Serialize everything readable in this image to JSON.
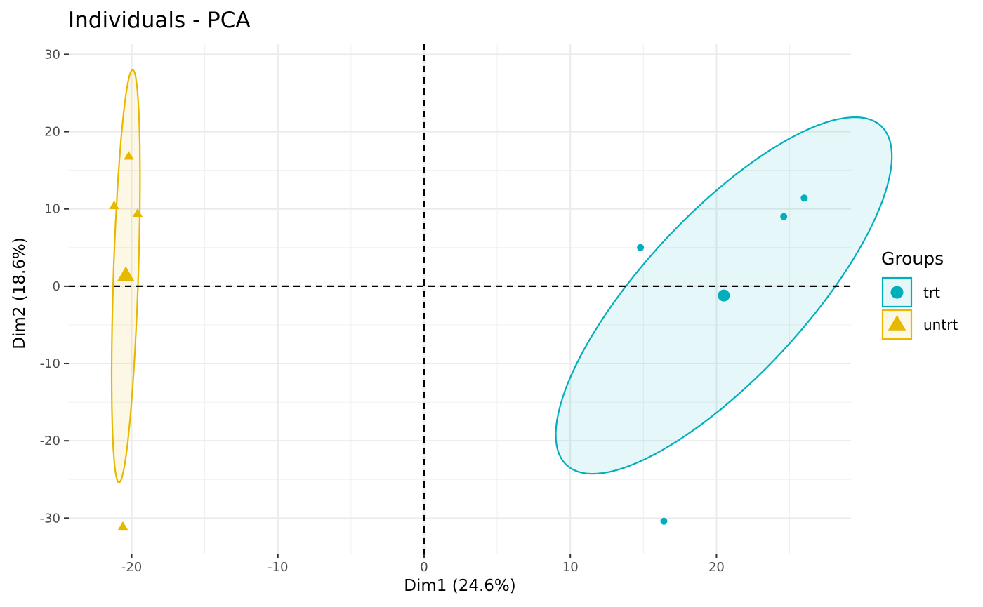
{
  "chart_data": {
    "type": "scatter",
    "title": "Individuals - PCA",
    "xlabel": "Dim1 (24.6%)",
    "ylabel": "Dim2 (18.6%)",
    "xlim": [
      -24.3,
      29.2
    ],
    "ylim": [
      -34.6,
      31.4
    ],
    "x_ticks": [
      -20,
      -10,
      0,
      10,
      20
    ],
    "y_ticks": [
      -30,
      -20,
      -10,
      0,
      10,
      20,
      30
    ],
    "x_tick_labels": [
      "-20",
      "-10",
      "0",
      "10",
      "20"
    ],
    "y_tick_labels": [
      "-30",
      "-20",
      "-10",
      "0",
      "10",
      "20",
      "30"
    ],
    "grid": true,
    "reference_lines": {
      "x": 0,
      "y": 0,
      "style": "dashed"
    },
    "legend": {
      "title": "Groups",
      "position": "right",
      "entries": [
        "trt",
        "untrt"
      ]
    },
    "series": [
      {
        "name": "trt",
        "color": "#00AFBB",
        "marker": "circle",
        "points": [
          {
            "x": 14.8,
            "y": 5.0
          },
          {
            "x": 24.6,
            "y": 9.0
          },
          {
            "x": 26.0,
            "y": 11.4
          },
          {
            "x": 16.4,
            "y": -30.4
          }
        ],
        "centroid": {
          "x": 20.5,
          "y": -1.2
        },
        "ellipse": {
          "cx": 20.5,
          "cy": -1.2,
          "a": 24.9,
          "b": 6.65,
          "angle_deg": 67
        }
      },
      {
        "name": "untrt",
        "color": "#E7B800",
        "marker": "triangle",
        "points": [
          {
            "x": -20.2,
            "y": 16.8
          },
          {
            "x": -21.2,
            "y": 10.4
          },
          {
            "x": -19.6,
            "y": 9.4
          },
          {
            "x": -20.6,
            "y": -31.1
          }
        ],
        "centroid": {
          "x": -20.4,
          "y": 1.4
        },
        "ellipse": {
          "cx": -20.4,
          "cy": 1.3,
          "a": 26.7,
          "b": 0.85,
          "angle_deg": 89
        }
      }
    ]
  }
}
